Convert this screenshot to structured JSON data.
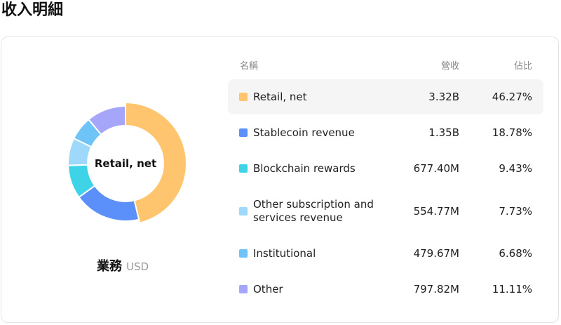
{
  "page": {
    "title": "收入明細"
  },
  "donut": {
    "center_label": "Retail, net"
  },
  "caption": {
    "main": "業務",
    "sub": "USD"
  },
  "table": {
    "headers": {
      "name": "名稱",
      "revenue": "營收",
      "share": "佔比"
    },
    "selected_index": 0,
    "rows": [
      {
        "name": "Retail, net",
        "revenue": "3.32B",
        "share": "46.27%",
        "share_value": 46.27,
        "color": "#FFC56E"
      },
      {
        "name": "Stablecoin revenue",
        "revenue": "1.35B",
        "share": "18.78%",
        "share_value": 18.78,
        "color": "#5B8FF9"
      },
      {
        "name": "Blockchain rewards",
        "revenue": "677.40M",
        "share": "9.43%",
        "share_value": 9.43,
        "color": "#3FD3E8"
      },
      {
        "name": "Other subscription and services revenue",
        "revenue": "554.77M",
        "share": "7.73%",
        "share_value": 7.73,
        "color": "#9ED8FA"
      },
      {
        "name": "Institutional",
        "revenue": "479.67M",
        "share": "6.68%",
        "share_value": 6.68,
        "color": "#6EC4F6"
      },
      {
        "name": "Other",
        "revenue": "797.82M",
        "share": "11.11%",
        "share_value": 11.11,
        "color": "#A5A6FA"
      }
    ]
  }
}
